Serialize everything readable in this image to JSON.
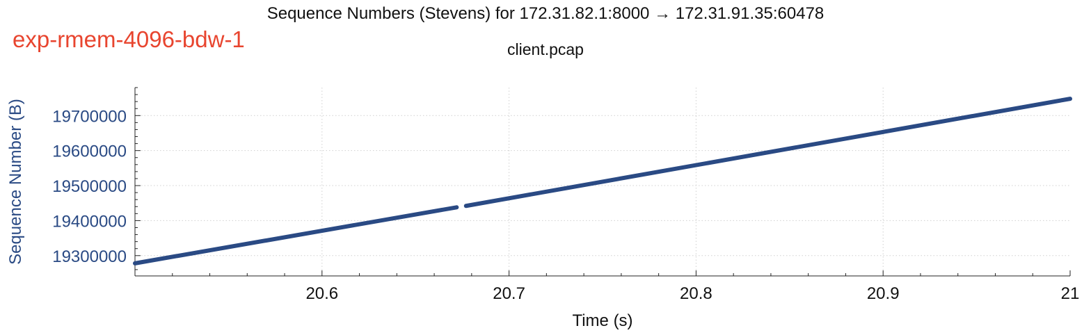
{
  "header": {
    "title": "Sequence Numbers (Stevens) for 172.31.82.1:8000 → 172.31.91.35:60478",
    "subtitle": "client.pcap",
    "tag": "exp-rmem-4096-bdw-1"
  },
  "colors": {
    "series": "#2a4a84",
    "tag": "#e8452f",
    "axis_label": "#2a4a84"
  },
  "chart_data": {
    "type": "line",
    "title": "Sequence Numbers (Stevens) for 172.31.82.1:8000 → 172.31.91.35:60478",
    "subtitle": "client.pcap",
    "xlabel": "Time (s)",
    "ylabel": "Sequence Number (B)",
    "xlim": [
      20.5,
      21.0
    ],
    "ylim": [
      19242000,
      19780000
    ],
    "xticks": [
      20.6,
      20.7,
      20.8,
      20.9,
      21
    ],
    "xtick_labels": [
      "20.6",
      "20.7",
      "20.8",
      "20.9",
      "21"
    ],
    "yticks": [
      19300000,
      19400000,
      19500000,
      19600000,
      19700000
    ],
    "ytick_labels": [
      "19300000",
      "19400000",
      "19500000",
      "19600000",
      "19700000"
    ],
    "grid": true,
    "series": [
      {
        "segments": [
          {
            "x": [
              20.5,
              20.672
            ],
            "y": [
              19278000,
              19438000
            ]
          },
          {
            "x": [
              20.677,
              21.0
            ],
            "y": [
              19442000,
              19748000
            ]
          }
        ]
      }
    ]
  }
}
